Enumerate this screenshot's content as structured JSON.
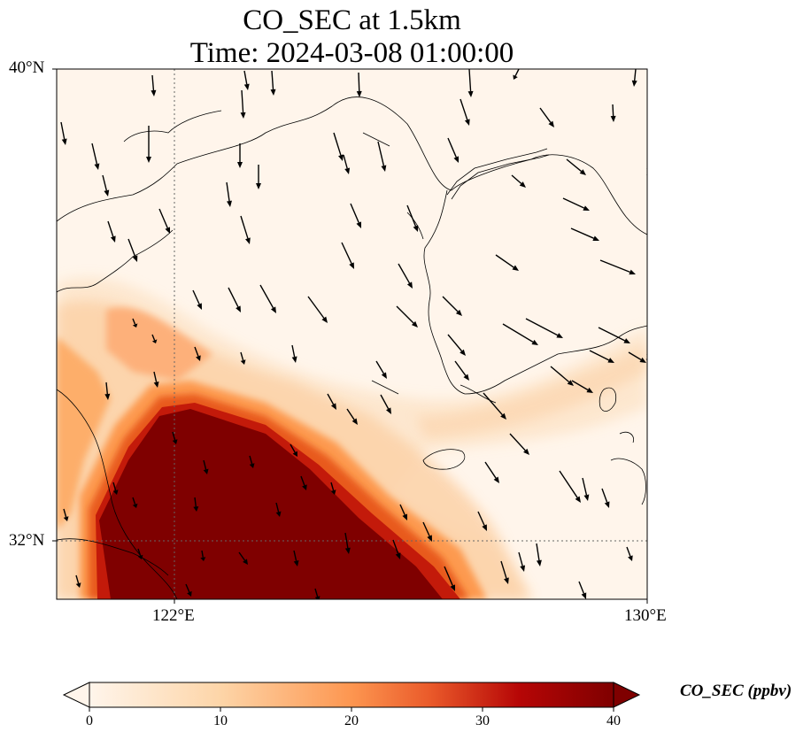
{
  "title": {
    "line1": "CO_SEC at 1.5km",
    "line2": "Time: 2024-03-08 01:00:00"
  },
  "map": {
    "extent_lon": [
      120,
      130
    ],
    "extent_lat": [
      31,
      40
    ],
    "gridlines_lon": [
      122
    ],
    "gridlines_lat": [
      32
    ],
    "lat_labels": [
      "40°N",
      "32°N"
    ],
    "lon_labels": [
      "122°E",
      "130°E"
    ],
    "field_colors": [
      "#fff5eb",
      "#fdd9b3",
      "#fd9c57",
      "#e04a0f",
      "#b00000",
      "#7f0000"
    ],
    "wind_arrows": "black quiver arrows, predominantly from the NNW over the Yellow Sea"
  },
  "colorbar": {
    "label": "CO_SEC (ppbv)",
    "ticks": [
      "0",
      "10",
      "20",
      "30",
      "40"
    ],
    "range": [
      0,
      40
    ],
    "extend": "both",
    "colormap": "OrRd-like: white → orange → dark red"
  }
}
